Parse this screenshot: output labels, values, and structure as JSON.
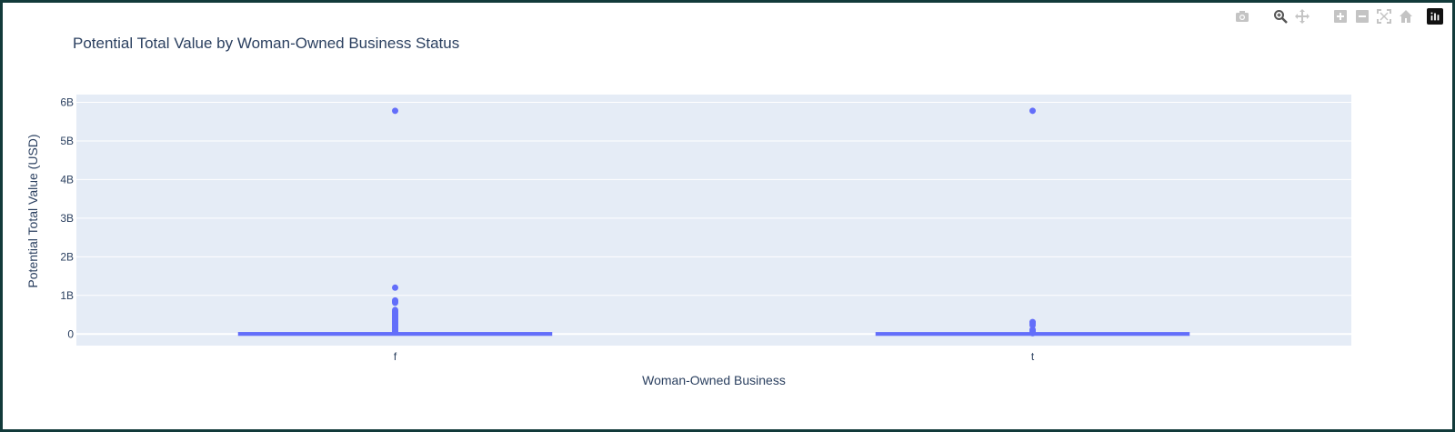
{
  "chart_data": {
    "type": "box",
    "title": "Potential Total Value by Woman-Owned Business Status",
    "xlabel": "Woman-Owned Business",
    "ylabel": "Potential Total Value (USD)",
    "categories": [
      "f",
      "t"
    ],
    "ylim": [
      -300000000,
      6200000000
    ],
    "yticks": [
      {
        "value": 0,
        "label": "0"
      },
      {
        "value": 1000000000,
        "label": "1B"
      },
      {
        "value": 2000000000,
        "label": "2B"
      },
      {
        "value": 3000000000,
        "label": "3B"
      },
      {
        "value": 4000000000,
        "label": "4B"
      },
      {
        "value": 5000000000,
        "label": "5B"
      },
      {
        "value": 6000000000,
        "label": "6B"
      }
    ],
    "grid": true,
    "colors": {
      "series": "#636efa",
      "plot_bg": "#e5ecf6",
      "grid": "#ffffff",
      "text": "#2a3f5f"
    },
    "boxes": [
      {
        "category": "f",
        "median": 0,
        "q1": 0,
        "q3": 5000000,
        "lowerfence": 0,
        "upperfence": 12000000,
        "outliers": [
          5780000000,
          1200000000,
          870000000,
          840000000,
          810000000,
          620000000,
          580000000,
          550000000,
          520000000,
          490000000,
          460000000,
          430000000,
          400000000,
          370000000,
          340000000,
          310000000,
          280000000,
          250000000,
          220000000,
          190000000,
          160000000,
          130000000,
          100000000,
          70000000,
          40000000
        ]
      },
      {
        "category": "t",
        "median": 0,
        "q1": 0,
        "q3": 4000000,
        "lowerfence": 0,
        "upperfence": 10000000,
        "outliers": [
          5780000000,
          310000000,
          270000000,
          230000000,
          110000000,
          80000000,
          50000000,
          20000000
        ]
      }
    ]
  },
  "modebar": {
    "icons": [
      "camera-icon",
      "zoom-icon",
      "pan-icon",
      "zoom-in-icon",
      "zoom-out-icon",
      "autoscale-icon",
      "home-icon",
      "plotly-logo-icon"
    ]
  }
}
